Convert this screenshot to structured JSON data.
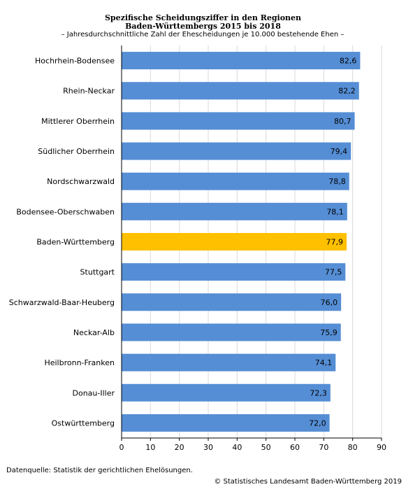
{
  "header": {
    "title_line1": "Spezifische Scheidungsziffer in den Regionen",
    "title_line2": "Baden-Württembergs 2015 bis 2018",
    "subtitle": "– Jahresdurchschnittliche Zahl der Ehescheidungen je 10.000 bestehende Ehen –"
  },
  "chart_data": {
    "type": "bar",
    "orientation": "horizontal",
    "title": "Spezifische Scheidungsziffer in den Regionen Baden-Württembergs 2015 bis 2018",
    "subtitle": "– Jahresdurchschnittliche Zahl der Ehescheidungen je 10.000 bestehende Ehen –",
    "categories": [
      "Hochrhein-Bodensee",
      "Rhein-Neckar",
      "Mittlerer Oberrhein",
      "Südlicher Oberrhein",
      "Nordschwarzwald",
      "Bodensee-Oberschwaben",
      "Baden-Württemberg",
      "Stuttgart",
      "Schwarzwald-Baar-Heuberg",
      "Neckar-Alb",
      "Heilbronn-Franken",
      "Donau-Iller",
      "Ostwürttemberg"
    ],
    "values": [
      82.6,
      82.2,
      80.7,
      79.4,
      78.8,
      78.1,
      77.9,
      77.5,
      76.0,
      75.9,
      74.1,
      72.3,
      72.0
    ],
    "value_labels": [
      "82,6",
      "82,2",
      "80,7",
      "79,4",
      "78,8",
      "78,1",
      "77,9",
      "77,5",
      "76,0",
      "75,9",
      "74,1",
      "72,3",
      "72,0"
    ],
    "highlight_category": "Baden-Württemberg",
    "xlim": [
      0,
      90
    ],
    "xticks": [
      0,
      10,
      20,
      30,
      40,
      50,
      60,
      70,
      80,
      90
    ],
    "grid": true,
    "colors": {
      "bar": "#558ED5",
      "highlight": "#FFC000",
      "grid": "#D9D9D9",
      "axis": "#000000"
    }
  },
  "footer": {
    "source": "Datenquelle: Statistik der gerichtlichen Ehelösungen.",
    "copyright": "© Statistisches Landesamt Baden-Württemberg 2019"
  }
}
